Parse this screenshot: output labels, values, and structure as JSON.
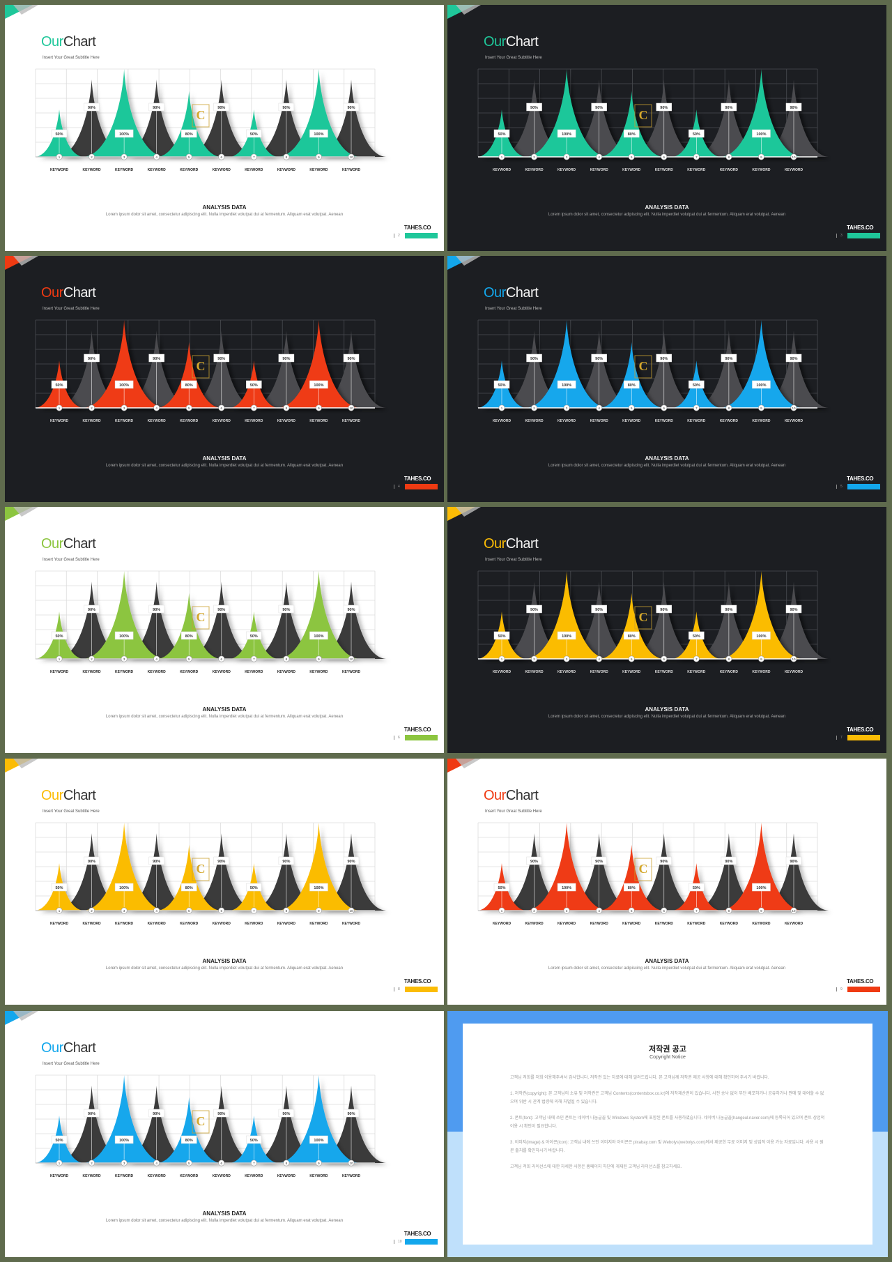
{
  "slides": [
    {
      "page": "2",
      "theme": "light",
      "accent": "#1fc79a"
    },
    {
      "page": "3",
      "theme": "dark",
      "accent": "#1fc79a"
    },
    {
      "page": "4",
      "theme": "dark",
      "accent": "#ef3a12"
    },
    {
      "page": "5",
      "theme": "dark",
      "accent": "#13a7ec"
    },
    {
      "page": "6",
      "theme": "light",
      "accent": "#8cc53f"
    },
    {
      "page": "7",
      "theme": "dark",
      "accent": "#fbbc05"
    },
    {
      "page": "8",
      "theme": "light",
      "accent": "#fbbc05"
    },
    {
      "page": "9",
      "theme": "light",
      "accent": "#ef3a12"
    },
    {
      "page": "10",
      "theme": "light",
      "accent": "#13a7ec"
    }
  ],
  "common": {
    "title_accent": "Our",
    "title_main": "Chart",
    "subtitle": "Insert Your Great Subtitle Here",
    "analysis_title": "ANALYSIS DATA",
    "description": "Lorem ipsum dolor sit amet, consectetur adipiscing elit. Nulla imperdiet volutpat dui at fermentum. Aliquam erat volutpat. Aenean",
    "brand": "TAHES.CO",
    "watermark_icon": "content-logo-icon"
  },
  "chart_data": {
    "type": "area",
    "categories": [
      "1",
      "2",
      "3",
      "4",
      "5",
      "6",
      "7",
      "8",
      "9",
      "10"
    ],
    "category_labels": [
      "KEYWORD",
      "KEYWORD",
      "KEYWORD",
      "KEYWORD",
      "KEYWORD",
      "KEYWORD",
      "KEYWORD",
      "KEYWORD",
      "KEYWORD",
      "KEYWORD"
    ],
    "data_labels": [
      "50%",
      "90%",
      "100%",
      "90%",
      "80%",
      "90%",
      "50%",
      "90%",
      "100%",
      "90%"
    ],
    "values": [
      50,
      90,
      100,
      90,
      80,
      90,
      50,
      90,
      100,
      90
    ],
    "peak_heights": [
      54,
      88,
      100,
      88,
      75,
      88,
      54,
      88,
      100,
      88
    ],
    "accent_positions": [
      1,
      3,
      5,
      7,
      9
    ],
    "grid": true,
    "ylim": [
      0,
      100
    ]
  },
  "copyright": {
    "title": "저작권 공고",
    "subtitle": "Copyright Notice",
    "paragraphs": [
      "고객님 저희를 저희 이용해주셔서 감사합니다. 저작권 있는 자료에 대해 알려드립니다. 본 고객님께 저작권 제공 사항에 대해 확인하여 주시기 바랍니다.",
      "1. 저작권(copyright): 본 고객님의 소유 및 저작권은 고객님 Contents(contentsbox.co.kr)에 저작재산권이 있습니다. 사전 승낙 없이 무단 배포하거나 공유하거나 판매 및 대여할 수 없으며 위반 시 관계 법령에 의해 처벌될 수 있습니다.",
      "2. 폰트(font): 고객님 내에 쓰인 폰트는 네이버 나눔글꼴 및 Windows System에 포함된 폰트를 사용하였습니다. 네이버 나눔글꼴(hangeul.naver.com)에 등록되어 있으며 폰트 상업적 이용 시 확인이 필요합니다.",
      "3. 이미지(image) & 아이콘(icon): 고객님 내에 쓰인 이미지와 아이콘은 pixabay.com 및 Webolys(webolys.com)에서 제공한 무료 이미지 및 상업적 이용 가능 자료입니다. 사용 시 원본 출처를 확인하시기 바랍니다.",
      "고객님 저희 라이선스에 대한 자세한 사항은 홈페이지 하단에 게재된 고객님 라이선스를 참고하세요."
    ]
  }
}
